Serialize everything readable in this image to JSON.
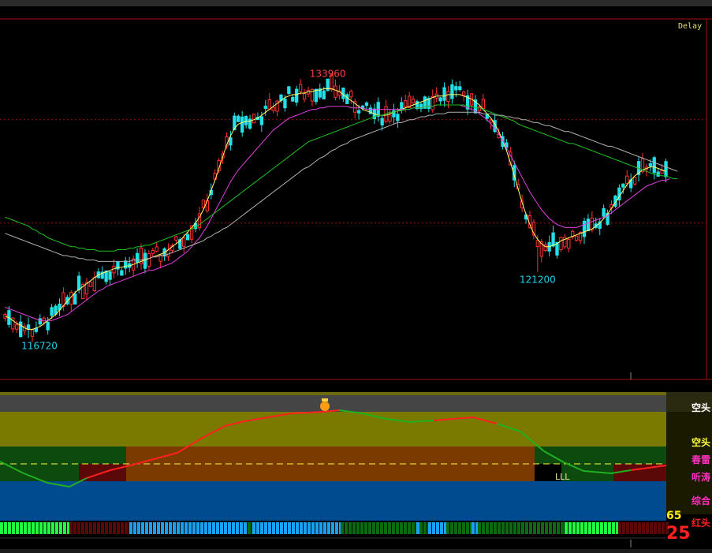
{
  "header": {
    "delay_label": "Delay"
  },
  "chart_data": {
    "type": "candlestick",
    "price_range": [
      114500,
      138000
    ],
    "annotations": [
      {
        "label": "133960",
        "value": 133960,
        "index": 83,
        "color": "#ff4040"
      },
      {
        "label": "121200",
        "value": 121200,
        "index": 137,
        "color": "#20d0e8"
      },
      {
        "label": "116720",
        "value": 116720,
        "index": 6,
        "color": "#20d0e8"
      }
    ],
    "gridlines": [
      131500,
      124500
    ],
    "candles": [],
    "ma_series": [
      {
        "color": "#ffff66",
        "values": [
          118200,
          118100,
          117900,
          117700,
          117600,
          117400,
          117300,
          117300,
          117400,
          117500,
          117700,
          117900,
          118100,
          118300,
          118600,
          118900,
          119200,
          119500,
          119800,
          120000,
          120200,
          120400,
          120600,
          120800,
          121000,
          121100,
          121200,
          121300,
          121400,
          121500,
          121500,
          121600,
          121600,
          121700,
          121800,
          121900,
          122000,
          122100,
          122200,
          122300,
          122400,
          122500,
          122700,
          122900,
          123100,
          123300,
          123600,
          123900,
          124200,
          124500,
          124900,
          125400,
          126000,
          126700,
          127400,
          128200,
          129000,
          129800,
          130400,
          130900,
          131200,
          131300,
          131400,
          131400,
          131500,
          131600,
          131800,
          132000,
          132200,
          132400,
          132600,
          132800,
          133000,
          133100,
          133200,
          133200,
          133300,
          133300,
          133400,
          133400,
          133500,
          133500,
          133600,
          133600,
          133600,
          133500,
          133400,
          133200,
          133000,
          132800,
          132600,
          132400,
          132200,
          132100,
          132000,
          131900,
          131800,
          131800,
          131800,
          131900,
          132000,
          132100,
          132200,
          132300,
          132400,
          132500,
          132600,
          132700,
          132800,
          132900,
          133000,
          133100,
          133100,
          133100,
          133200,
          133200,
          133200,
          133200,
          133100,
          133000,
          132900,
          132700,
          132500,
          132200,
          131900,
          131600,
          131200,
          130700,
          130100,
          129400,
          128600,
          127700,
          126800,
          125900,
          125100,
          124400,
          123800,
          123400,
          123100,
          122900,
          122900,
          123000,
          123100,
          123300,
          123400,
          123500,
          123600,
          123700,
          123800,
          123900,
          124000,
          124100,
          124300,
          124500,
          124800,
          125100,
          125500,
          125900,
          126300,
          126700,
          127100,
          127400,
          127700,
          127900,
          128100,
          128200,
          128300,
          128300,
          128200,
          128100,
          128000
        ]
      },
      {
        "color": "#e040e0",
        "values": [
          118800,
          118700,
          118600,
          118500,
          118400,
          118300,
          118200,
          118100,
          118000,
          117900,
          117900,
          117900,
          117900,
          118000,
          118100,
          118200,
          118300,
          118500,
          118700,
          118900,
          119100,
          119300,
          119500,
          119700,
          119900,
          120000,
          120200,
          120300,
          120400,
          120500,
          120600,
          120700,
          120800,
          120900,
          121000,
          121100,
          121200,
          121300,
          121300,
          121400,
          121500,
          121600,
          121700,
          121800,
          122000,
          122200,
          122400,
          122600,
          122900,
          123200,
          123500,
          123900,
          124300,
          124800,
          125300,
          125800,
          126300,
          126800,
          127300,
          127700,
          128100,
          128400,
          128700,
          129000,
          129300,
          129600,
          129900,
          130200,
          130500,
          130800,
          131000,
          131200,
          131400,
          131600,
          131700,
          131800,
          131900,
          132000,
          132100,
          132200,
          132200,
          132300,
          132300,
          132400,
          132400,
          132400,
          132400,
          132400,
          132400,
          132300,
          132300,
          132300,
          132300,
          132200,
          132200,
          132200,
          132200,
          132200,
          132200,
          132200,
          132200,
          132200,
          132200,
          132200,
          132200,
          132300,
          132300,
          132300,
          132400,
          132400,
          132400,
          132500,
          132500,
          132500,
          132500,
          132500,
          132500,
          132500,
          132400,
          132300,
          132200,
          132100,
          131900,
          131700,
          131500,
          131200,
          130900,
          130500,
          130100,
          129600,
          129100,
          128600,
          128100,
          127600,
          127100,
          126600,
          126200,
          125800,
          125400,
          125100,
          124800,
          124600,
          124400,
          124300,
          124200,
          124200,
          124200,
          124200,
          124300,
          124400,
          124500,
          124600,
          124700,
          124800,
          124900,
          125000,
          125200,
          125400,
          125600,
          125800,
          126000,
          126200,
          126400,
          126600,
          126800,
          127000,
          127100,
          127200,
          127300,
          127400,
          127400,
          127500
        ]
      },
      {
        "color": "#20c020",
        "values": [
          124900,
          124800,
          124700,
          124600,
          124500,
          124400,
          124300,
          124100,
          124000,
          123800,
          123700,
          123500,
          123400,
          123300,
          123200,
          123100,
          123000,
          122900,
          122900,
          122800,
          122800,
          122700,
          122700,
          122700,
          122600,
          122600,
          122600,
          122600,
          122600,
          122700,
          122700,
          122700,
          122800,
          122800,
          122900,
          122900,
          123000,
          123000,
          123100,
          123200,
          123300,
          123400,
          123500,
          123600,
          123700,
          123800,
          123900,
          124000,
          124100,
          124200,
          124400,
          124600,
          124800,
          125000,
          125200,
          125400,
          125600,
          125800,
          126000,
          126200,
          126400,
          126600,
          126800,
          127000,
          127200,
          127400,
          127600,
          127800,
          128000,
          128200,
          128400,
          128600,
          128800,
          129000,
          129200,
          129400,
          129600,
          129800,
          130000,
          130100,
          130200,
          130300,
          130400,
          130500,
          130600,
          130700,
          130800,
          130900,
          131000,
          131100,
          131200,
          131300,
          131400,
          131500,
          131600,
          131700,
          131800,
          131800,
          131900,
          132000,
          132000,
          132100,
          132100,
          132200,
          132200,
          132300,
          132300,
          132300,
          132400,
          132400,
          132400,
          132500,
          132500,
          132500,
          132500,
          132500,
          132500,
          132500,
          132500,
          132400,
          132400,
          132300,
          132300,
          132200,
          132100,
          132000,
          131900,
          131800,
          131700,
          131600,
          131500,
          131400,
          131200,
          131100,
          131000,
          130900,
          130800,
          130700,
          130600,
          130500,
          130400,
          130300,
          130200,
          130100,
          130000,
          129900,
          129900,
          129800,
          129700,
          129600,
          129500,
          129400,
          129300,
          129200,
          129100,
          129000,
          128900,
          128800,
          128700,
          128600,
          128500,
          128400,
          128300,
          128200,
          128100,
          128000,
          127900,
          127800,
          127800,
          127700,
          127700,
          127600,
          127500,
          127500
        ]
      },
      {
        "color": "#b0b0b0",
        "values": [
          123800,
          123700,
          123600,
          123500,
          123400,
          123300,
          123200,
          123100,
          123000,
          122900,
          122800,
          122700,
          122600,
          122500,
          122400,
          122300,
          122300,
          122200,
          122200,
          122100,
          122100,
          122000,
          122000,
          122000,
          121900,
          121900,
          121900,
          121900,
          121900,
          121900,
          121900,
          121900,
          121900,
          122000,
          122000,
          122000,
          122100,
          122100,
          122200,
          122200,
          122300,
          122300,
          122400,
          122500,
          122600,
          122700,
          122800,
          122900,
          123000,
          123100,
          123200,
          123300,
          123500,
          123600,
          123800,
          123900,
          124100,
          124200,
          124400,
          124600,
          124800,
          125000,
          125200,
          125400,
          125600,
          125800,
          126000,
          126200,
          126400,
          126600,
          126800,
          127000,
          127200,
          127400,
          127600,
          127800,
          128000,
          128200,
          128300,
          128500,
          128700,
          128900,
          129000,
          129200,
          129400,
          129500,
          129700,
          129800,
          129900,
          130100,
          130200,
          130300,
          130400,
          130500,
          130600,
          130700,
          130800,
          130900,
          131000,
          131100,
          131200,
          131300,
          131300,
          131400,
          131500,
          131500,
          131600,
          131700,
          131700,
          131800,
          131800,
          131900,
          131900,
          131900,
          132000,
          132000,
          132000,
          132000,
          132000,
          132000,
          132000,
          132000,
          132000,
          131900,
          131900,
          131900,
          131800,
          131800,
          131800,
          131700,
          131700,
          131600,
          131600,
          131500,
          131500,
          131400,
          131300,
          131300,
          131200,
          131100,
          131100,
          131000,
          130900,
          130800,
          130700,
          130700,
          130600,
          130500,
          130400,
          130300,
          130200,
          130100,
          130000,
          129900,
          129800,
          129700,
          129700,
          129600,
          129500,
          129400,
          129300,
          129200,
          129100,
          129000,
          128900,
          128800,
          128700,
          128600,
          128500,
          128400,
          128300,
          128200,
          128100,
          128000
        ]
      }
    ]
  },
  "indicator": {
    "labels": [
      {
        "text": "空头",
        "color": "#ffffff"
      },
      {
        "text": "空头",
        "color": "#ffff40"
      },
      {
        "text": "春雷",
        "color": "#ff30c0"
      },
      {
        "text": "听涛",
        "color": "#ff30c0"
      },
      {
        "text": "综合",
        "color": "#ff30c0"
      },
      {
        "text": "红头",
        "color": "#ff2020"
      }
    ],
    "marker_text": "LLL",
    "score_small": "65",
    "score_big": "25"
  }
}
